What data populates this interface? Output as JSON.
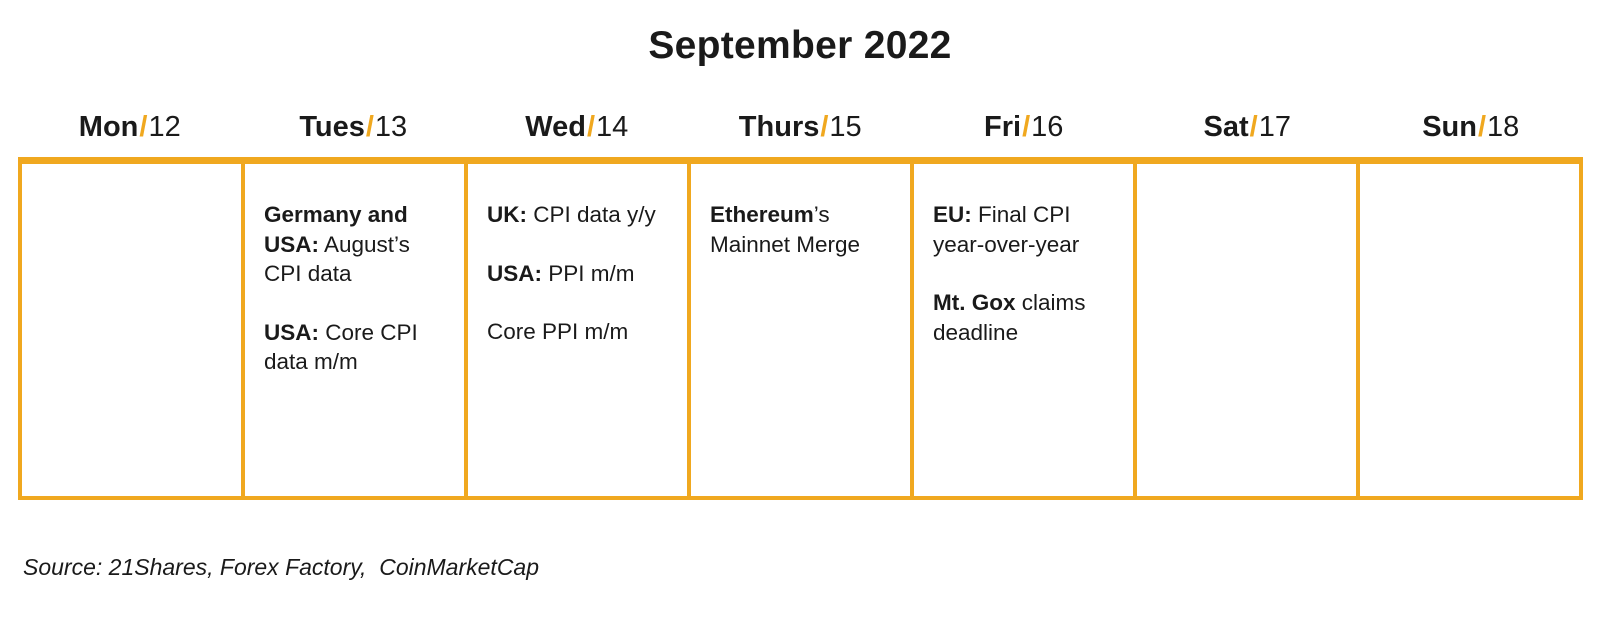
{
  "title": "September 2022",
  "accent_color": "#f0a81f",
  "days": [
    {
      "name": "Mon",
      "sep": "/",
      "num": "12"
    },
    {
      "name": "Tues",
      "sep": "/",
      "num": "13"
    },
    {
      "name": "Wed",
      "sep": "/",
      "num": "14"
    },
    {
      "name": "Thurs",
      "sep": "/",
      "num": "15"
    },
    {
      "name": "Fri",
      "sep": "/",
      "num": "16"
    },
    {
      "name": "Sat",
      "sep": "/",
      "num": "17"
    },
    {
      "name": "Sun",
      "sep": "/",
      "num": "18"
    }
  ],
  "events": {
    "tue": [
      {
        "bold": "Germany and USA:",
        "text": " August’s CPI data"
      },
      {
        "bold": "USA:",
        "text": " Core CPI data m/m"
      }
    ],
    "wed": [
      {
        "bold": "UK:",
        "text": " CPI data y/y"
      },
      {
        "bold": "USA:",
        "text": " PPI m/m"
      },
      {
        "text": "Core PPI m/m"
      }
    ],
    "thu": [
      {
        "bold": "Ethereum",
        "text": "’s Mainnet Merge"
      }
    ],
    "fri": [
      {
        "bold": "EU:",
        "text": " Final CPI year-over-year"
      },
      {
        "bold": "Mt. Gox",
        "text": " claims deadline"
      }
    ]
  },
  "source": "Source: 21Shares, Forex Factory,  CoinMarketCap"
}
